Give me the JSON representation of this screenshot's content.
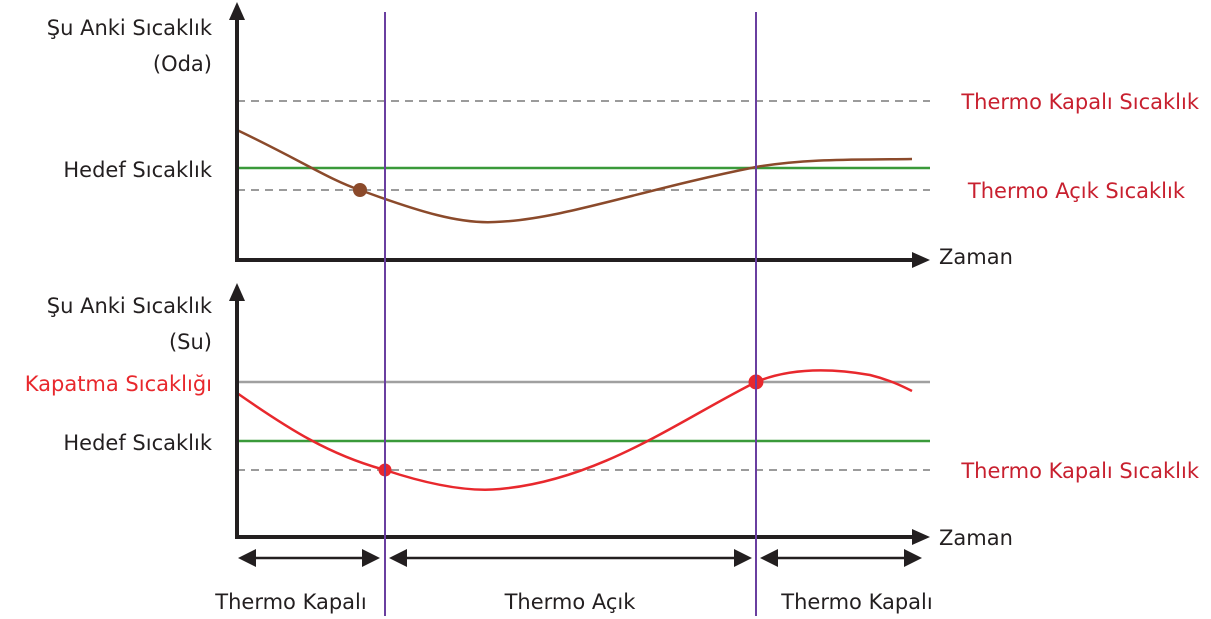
{
  "top_chart": {
    "y_axis_label_line1": "Şu Anki Sıcaklık",
    "y_axis_label_line2": "(Oda)",
    "target_label": "Hedef Sıcaklık",
    "x_axis_label": "Zaman",
    "thermo_off_label": "Thermo Kapalı Sıcaklık",
    "thermo_on_label": "Thermo Açık Sıcaklık"
  },
  "bottom_chart": {
    "y_axis_label_line1": "Şu Anki Sıcaklık",
    "y_axis_label_line2": "(Su)",
    "shutoff_label": "Kapatma Sıcaklığı",
    "target_label": "Hedef Sıcaklık",
    "x_axis_label": "Zaman",
    "thermo_off_label": "Thermo Kapalı Sıcaklık"
  },
  "phases": [
    {
      "label": "Thermo Kapalı"
    },
    {
      "label": "Thermo Açık"
    },
    {
      "label": "Thermo Kapalı"
    }
  ],
  "colors": {
    "axis": "#231f20",
    "room_curve": "#8b4a2b",
    "water_curve": "#e8282d",
    "target_line": "#3a9a3a",
    "dashed_line": "#9b9b9b",
    "shutoff_line": "#a0a0a0",
    "divider": "#6a3fa0",
    "label_accent": "#c8202f",
    "shutoff_label": "#e8282d"
  }
}
